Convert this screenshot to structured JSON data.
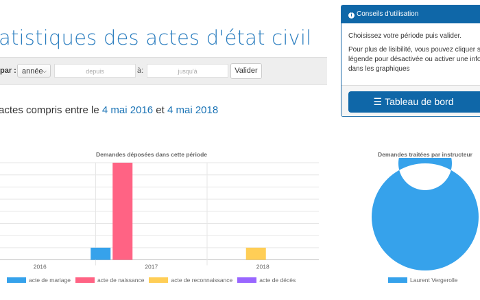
{
  "header": {
    "title": "atistiques des actes d'état civil"
  },
  "filter": {
    "par_label": "par :",
    "period_select": "année",
    "from_placeholder": "depuis",
    "to_label": "à:",
    "to_placeholder": "jusqu'à",
    "submit_label": "Valider"
  },
  "summary": {
    "prefix": "actes compris entre le ",
    "date_from": "4 mai 2016",
    "conj": " et ",
    "date_to": "4 mai 2018"
  },
  "help_panel": {
    "title": "Conseils d'utilisation",
    "icon": "info-circle-icon",
    "line1": "Choisissez votre période puis valider.",
    "line2": "Pour plus de lisibilité, vous pouvez cliquer su",
    "line3": "légende pour désactivée ou activer une infor",
    "line4": "dans les graphiques",
    "dashboard_button": "Tableau de bord",
    "accent": "#0f67a8"
  },
  "chart_data": [
    {
      "type": "bar",
      "title": "Demandes déposées dans cette période",
      "categories": [
        "2016",
        "2017",
        "2018"
      ],
      "ylim": [
        0,
        8
      ],
      "grid": true,
      "legend_position": "bottom",
      "series": [
        {
          "name": "acte de mariage",
          "color": "#36a2eb",
          "values": [
            0,
            1,
            0
          ]
        },
        {
          "name": "acte de naissance",
          "color": "#ff6384",
          "values": [
            0,
            8,
            0
          ]
        },
        {
          "name": "acte de reconnaissance",
          "color": "#ffce56",
          "values": [
            0,
            0,
            1
          ]
        },
        {
          "name": "acte de décès",
          "color": "#9966ff",
          "values": [
            0,
            0,
            0
          ]
        }
      ]
    },
    {
      "type": "pie",
      "title": "Demandes traitées par instructeur",
      "donut": true,
      "legend_position": "bottom",
      "labels": [
        "Laurent Vergerolle"
      ],
      "values": [
        1
      ],
      "colors": [
        "#36a2eb"
      ]
    }
  ]
}
